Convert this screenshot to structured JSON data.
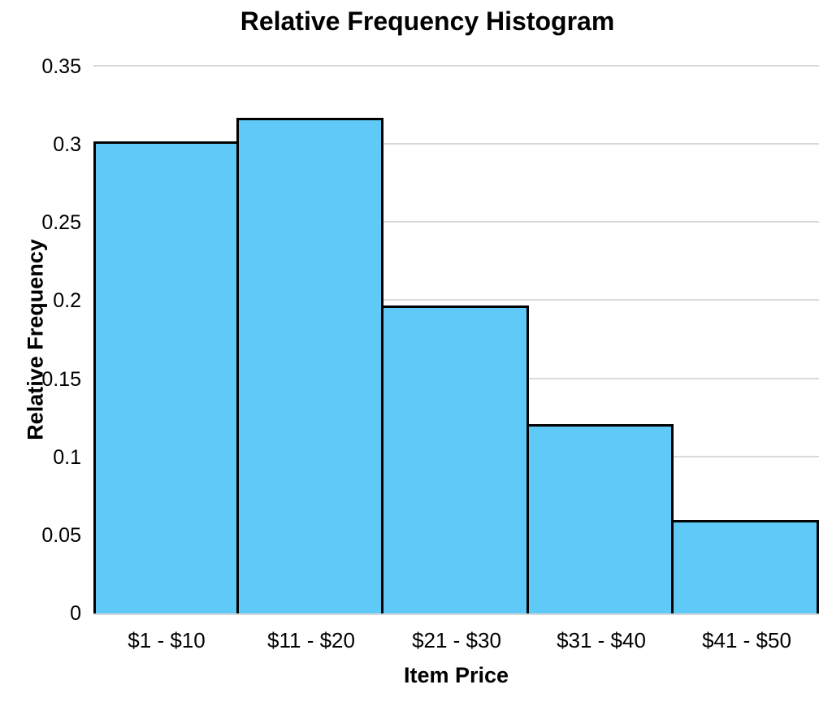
{
  "chart_data": {
    "type": "bar",
    "subtype": "histogram",
    "title": "Relative Frequency Histogram",
    "xlabel": "Item Price",
    "ylabel": "Relative Frequency",
    "categories": [
      "$1 - $10",
      "$11 - $20",
      "$21 - $30",
      "$31 - $40",
      "$41 - $50"
    ],
    "values": [
      0.302,
      0.317,
      0.197,
      0.121,
      0.06
    ],
    "ylim": [
      0,
      0.35
    ],
    "yticks": [
      0,
      0.05,
      0.1,
      0.15,
      0.2,
      0.25,
      0.3,
      0.35
    ],
    "ytick_labels": [
      "0",
      "0.05",
      "0.1",
      "0.15",
      "0.2",
      "0.25",
      "0.3",
      "0.35"
    ],
    "grid": "horizontal",
    "legend_position": "none",
    "bar_gap": 0,
    "colors": {
      "bar_fill": "#5FC9F7",
      "bar_border": "#000000",
      "gridline": "#D9D9D9",
      "text": "#000000",
      "background": "#FFFFFF"
    }
  }
}
